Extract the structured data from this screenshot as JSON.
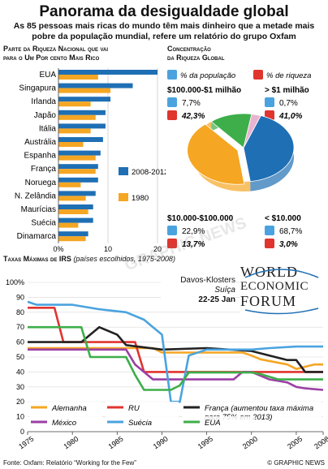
{
  "header": {
    "title": "Panorama da desigualdade global",
    "subtitle": "As 85 pessoas mais ricas do mundo têm mais dinheiro que a metade mais pobre da população mundial, refere um relatório do grupo Oxfam"
  },
  "bar_section": {
    "title_line1": "Parte da Riqueza Nacional que vai",
    "title_line2": "para o Um Por cento Mais Rico"
  },
  "pie_section": {
    "title_line1": "Concentração",
    "title_line2": "da Riqueza Global",
    "legend_population": "% da população",
    "legend_wealth": "% de riqueza",
    "groups": [
      {
        "label": "$100.000-$1 milhão",
        "population": "7,7%",
        "wealth": "42,3%"
      },
      {
        "label": "> $1 milhão",
        "population": "0,7%",
        "wealth": "41,0%"
      },
      {
        "label": "$10.000-$100.000",
        "population": "22,9%",
        "wealth": "13,7%"
      },
      {
        "label": "< $10.000",
        "population": "68,7%",
        "wealth": "3,0%"
      }
    ]
  },
  "line_section": {
    "title": "Taxas Máximas de IRS",
    "title_note": "(países escolhidos, 1975-2008)"
  },
  "event": {
    "name": "Davos-Klosters",
    "place": "Suíça",
    "dates": "22-25 Jan"
  },
  "wef_logo": {
    "line1": "WORLD",
    "line2": "ECONOMIC",
    "line3": "FORUM"
  },
  "footer": {
    "source": "Fonte: Oxfam: Relatório “Working for the Few”",
    "credit": "© GRAPHIC NEWS"
  },
  "watermark": "GRAPHIC NEWS",
  "colors": {
    "dark_blue": "#1f6fb4",
    "light_blue": "#4aa3df",
    "orange": "#f5a623",
    "red": "#e0342f",
    "green": "#3dae49",
    "purple": "#9b3fa5",
    "black": "#222222",
    "pink_slice": "#e8b4d0"
  },
  "chart_data": [
    {
      "type": "bar",
      "title": "Parte da Riqueza Nacional que vai para o Um Por cento Mais Rico",
      "categories": [
        "EUA",
        "Singapura",
        "Irlanda",
        "Japão",
        "Itália",
        "Austrália",
        "Espanha",
        "França",
        "Noruega",
        "N. Zelândia",
        "Maurícias",
        "Suécia",
        "Dinamarca"
      ],
      "series": [
        {
          "name": "2008-2012",
          "color": "#1f6fb4",
          "values": [
            20,
            15,
            10.5,
            9.5,
            9.5,
            9,
            8.5,
            8,
            8,
            7.5,
            7,
            7,
            6
          ]
        },
        {
          "name": "1980",
          "color": "#f5a623",
          "values": [
            8,
            10.5,
            6.5,
            7.5,
            6.5,
            5,
            7.5,
            7.5,
            4.5,
            5.5,
            6,
            4,
            5.5
          ]
        }
      ],
      "xlim": [
        0,
        20
      ],
      "ticks": [
        "0%",
        "10",
        "20"
      ]
    },
    {
      "type": "pie",
      "title": "Concentração da Riqueza Global",
      "series_name": "% de riqueza",
      "labels": [
        "$100.000-$1 milhão",
        "> $1 milhão",
        "$10.000-$100.000",
        "< $10.000"
      ],
      "values": [
        42.3,
        41.0,
        13.7,
        3.0
      ],
      "colors": [
        "#1f6fb4",
        "#f5a623",
        "#3dae49",
        "#e8b4d0"
      ]
    },
    {
      "type": "line",
      "title": "Taxas Máximas de IRS",
      "x": [
        1975,
        1980,
        1985,
        1990,
        1995,
        2000,
        2005,
        2008
      ],
      "xlim": [
        1975,
        2008
      ],
      "ylim": [
        0,
        100
      ],
      "y_ticks": [
        "100%",
        "90",
        "80",
        "70",
        "60",
        "50",
        "40",
        "30",
        "20",
        "10",
        "0"
      ],
      "x_ticks": [
        "1975",
        "1980",
        "1985",
        "1990",
        "1995",
        "2000",
        "2005",
        "2008"
      ],
      "series": [
        {
          "name": "Alemanha",
          "color": "#f5a623",
          "points": [
            [
              1975,
              56
            ],
            [
              1989,
              56
            ],
            [
              1990,
              53
            ],
            [
              1999,
              53
            ],
            [
              2000,
              51
            ],
            [
              2001,
              48.5
            ],
            [
              2004,
              45
            ],
            [
              2005,
              42
            ],
            [
              2007,
              45
            ],
            [
              2008,
              45
            ]
          ]
        },
        {
          "name": "RU",
          "color": "#e0342f",
          "points": [
            [
              1975,
              83
            ],
            [
              1978,
              83
            ],
            [
              1979,
              60
            ],
            [
              1987,
              60
            ],
            [
              1988,
              40
            ],
            [
              2008,
              40
            ]
          ]
        },
        {
          "name": "França (aumentou taxa máxima para 75% em 2013)",
          "color": "#222222",
          "points": [
            [
              1975,
              60
            ],
            [
              1981,
              60
            ],
            [
              1982,
              65
            ],
            [
              1983,
              70
            ],
            [
              1985,
              65
            ],
            [
              1986,
              58
            ],
            [
              1990,
              55
            ],
            [
              1995,
              56
            ],
            [
              2000,
              54
            ],
            [
              2004,
              48
            ],
            [
              2005,
              48
            ],
            [
              2006,
              40
            ],
            [
              2008,
              40
            ]
          ]
        },
        {
          "name": "México",
          "color": "#9b3fa5",
          "points": [
            [
              1975,
              55
            ],
            [
              1983,
              55
            ],
            [
              1986,
              55
            ],
            [
              1987,
              45
            ],
            [
              1988,
              40
            ],
            [
              1989,
              35
            ],
            [
              1990,
              35
            ],
            [
              1991,
              35
            ],
            [
              1998,
              35
            ],
            [
              1999,
              40
            ],
            [
              2000,
              40
            ],
            [
              2002,
              35
            ],
            [
              2003,
              34
            ],
            [
              2004,
              33
            ],
            [
              2005,
              30
            ],
            [
              2006,
              29
            ],
            [
              2008,
              28
            ]
          ]
        },
        {
          "name": "Suécia",
          "color": "#4aa3df",
          "points": [
            [
              1975,
              87
            ],
            [
              1976,
              85
            ],
            [
              1980,
              85
            ],
            [
              1983,
              82
            ],
            [
              1986,
              80
            ],
            [
              1988,
              75
            ],
            [
              1989,
              70
            ],
            [
              1990,
              65
            ],
            [
              1991,
              20
            ],
            [
              1992,
              20
            ],
            [
              1993,
              51
            ],
            [
              1995,
              55
            ],
            [
              1999,
              55
            ],
            [
              2000,
              55
            ],
            [
              2002,
              56
            ],
            [
              2005,
              57
            ],
            [
              2006,
              57
            ],
            [
              2008,
              57
            ]
          ]
        },
        {
          "name": "EUA",
          "color": "#3dae49",
          "points": [
            [
              1975,
              70
            ],
            [
              1981,
              70
            ],
            [
              1982,
              50
            ],
            [
              1986,
              50
            ],
            [
              1987,
              38
            ],
            [
              1988,
              28
            ],
            [
              1991,
              28
            ],
            [
              1992,
              31
            ],
            [
              1993,
              39.6
            ],
            [
              2000,
              39.6
            ],
            [
              2001,
              38.6
            ],
            [
              2003,
              35
            ],
            [
              2008,
              35
            ]
          ]
        }
      ]
    }
  ]
}
